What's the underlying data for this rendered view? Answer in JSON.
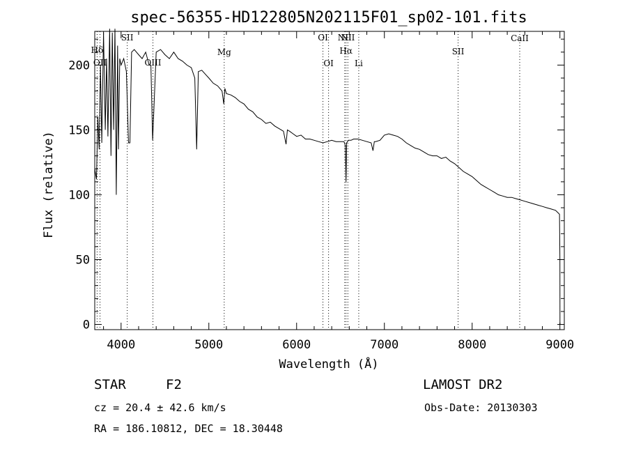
{
  "chart_data": {
    "type": "line",
    "title": "spec-56355-HD122805N202115F01_sp02-101.fits",
    "xlabel": "Wavelength (Å)",
    "ylabel": "Flux (relative)",
    "xlim": [
      3700,
      9050
    ],
    "ylim": [
      -4,
      226
    ],
    "xticks": [
      4000,
      5000,
      6000,
      7000,
      8000,
      9000
    ],
    "yticks": [
      0,
      50,
      100,
      150,
      200
    ],
    "grid": false,
    "series": [
      {
        "x": [
          3700,
          3720,
          3735,
          3750,
          3765,
          3780,
          3800,
          3820,
          3835,
          3850,
          3870,
          3885,
          3900,
          3915,
          3930,
          3945,
          3960,
          3970,
          3985,
          4000,
          4030,
          4060,
          4085,
          4101,
          4120,
          4150,
          4200,
          4240,
          4280,
          4320,
          4340,
          4360,
          4400,
          4450,
          4500,
          4550,
          4600,
          4650,
          4700,
          4750,
          4800,
          4840,
          4861,
          4880,
          4920,
          4960,
          5000,
          5050,
          5100,
          5150,
          5170,
          5183,
          5200,
          5250,
          5300,
          5350,
          5400,
          5450,
          5500,
          5550,
          5600,
          5650,
          5700,
          5750,
          5800,
          5850,
          5880,
          5895,
          5920,
          5960,
          6000,
          6050,
          6100,
          6150,
          6200,
          6250,
          6300,
          6350,
          6400,
          6450,
          6500,
          6540,
          6555,
          6563,
          6570,
          6590,
          6620,
          6650,
          6700,
          6750,
          6800,
          6850,
          6870,
          6885,
          6900,
          6950,
          7000,
          7050,
          7100,
          7150,
          7200,
          7250,
          7300,
          7350,
          7400,
          7450,
          7500,
          7550,
          7600,
          7650,
          7700,
          7750,
          7800,
          7850,
          7900,
          7950,
          8000,
          8050,
          8100,
          8150,
          8200,
          8250,
          8300,
          8350,
          8400,
          8450,
          8500,
          8550,
          8600,
          8650,
          8700,
          8750,
          8800,
          8850,
          8900,
          8950,
          8980,
          8995,
          9000,
          9001
        ],
        "y": [
          120,
          112,
          160,
          135,
          200,
          140,
          225,
          150,
          205,
          145,
          228,
          130,
          225,
          150,
          228,
          100,
          215,
          135,
          205,
          200,
          205,
          195,
          140,
          140,
          210,
          212,
          208,
          205,
          210,
          200,
          200,
          142,
          210,
          212,
          208,
          205,
          210,
          205,
          203,
          200,
          198,
          190,
          135,
          195,
          196,
          193,
          190,
          186,
          184,
          180,
          170,
          182,
          178,
          177,
          175,
          172,
          170,
          166,
          164,
          160,
          158,
          155,
          156,
          153,
          151,
          149,
          139,
          150,
          149,
          147,
          145,
          146,
          143,
          143,
          142,
          141,
          140,
          141,
          142,
          141,
          141,
          141,
          138,
          110,
          140,
          142,
          142,
          143,
          143,
          142,
          141,
          140,
          134,
          141,
          141,
          142,
          146,
          147,
          146,
          145,
          143,
          140,
          138,
          136,
          135,
          133,
          131,
          130,
          130,
          128,
          129,
          126,
          124,
          121,
          118,
          116,
          114,
          111,
          108,
          106,
          104,
          102,
          100,
          99,
          98,
          98,
          97,
          96,
          95,
          94,
          93,
          92,
          91,
          90,
          89,
          88,
          86,
          85,
          50,
          0
        ]
      }
    ],
    "lines": [
      {
        "label": "Hδ",
        "wl": 3727
      },
      {
        "label": "OII",
        "wl": 3760
      },
      {
        "label": "SII",
        "wl": 4070
      },
      {
        "label": "OIII",
        "wl": 4363
      },
      {
        "label": "Mg",
        "wl": 5175
      },
      {
        "label": "OI",
        "wl": 6300
      },
      {
        "label": "OI",
        "wl": 6364
      },
      {
        "label": "NII",
        "wl": 6548
      },
      {
        "label": "Hα",
        "wl": 6563
      },
      {
        "label": "NII",
        "wl": 6584
      },
      {
        "label": "Li",
        "wl": 6708
      },
      {
        "label": "SII",
        "wl": 7840
      },
      {
        "label": "CaII",
        "wl": 8542
      }
    ]
  },
  "info": {
    "object_class": "STAR",
    "subclass": "F2",
    "survey": "LAMOST DR2",
    "cz": "cz = 20.4 ± 42.6 km/s",
    "obs_date": "Obs-Date: 20130303",
    "coords": "RA = 186.10812, DEC =  18.30448"
  }
}
